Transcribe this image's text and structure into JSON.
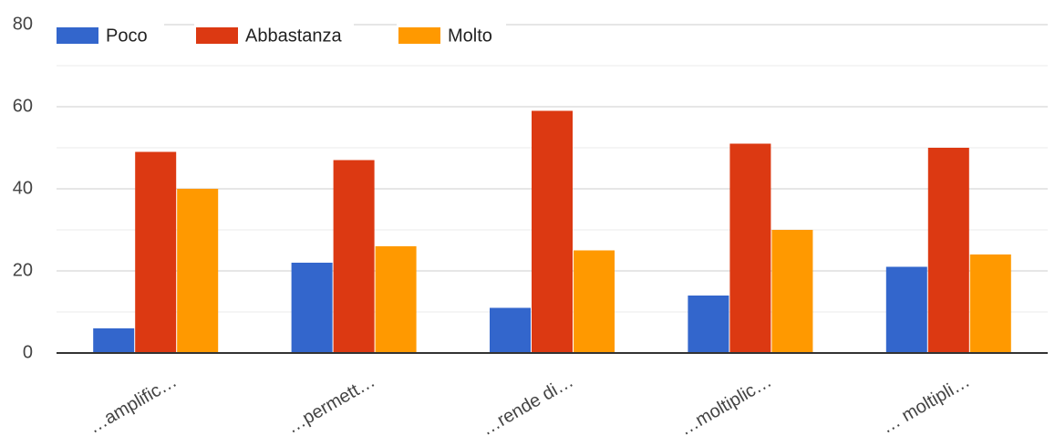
{
  "chart_data": {
    "type": "bar",
    "categories": [
      "…amplific…",
      "…permett…",
      "…rende di…",
      "…moltiplic…",
      "… moltipli…"
    ],
    "series": [
      {
        "name": "Poco",
        "color": "#3366cc",
        "values": [
          6,
          22,
          11,
          14,
          21
        ]
      },
      {
        "name": "Abbastanza",
        "color": "#dc3912",
        "values": [
          49,
          47,
          59,
          51,
          50
        ]
      },
      {
        "name": "Molto",
        "color": "#ff9900",
        "values": [
          40,
          26,
          25,
          30,
          24
        ]
      }
    ],
    "ylim": [
      0,
      80
    ],
    "yticks": [
      0,
      20,
      40,
      60,
      80
    ],
    "grid": true,
    "minor_grid": true,
    "legend": "top"
  }
}
